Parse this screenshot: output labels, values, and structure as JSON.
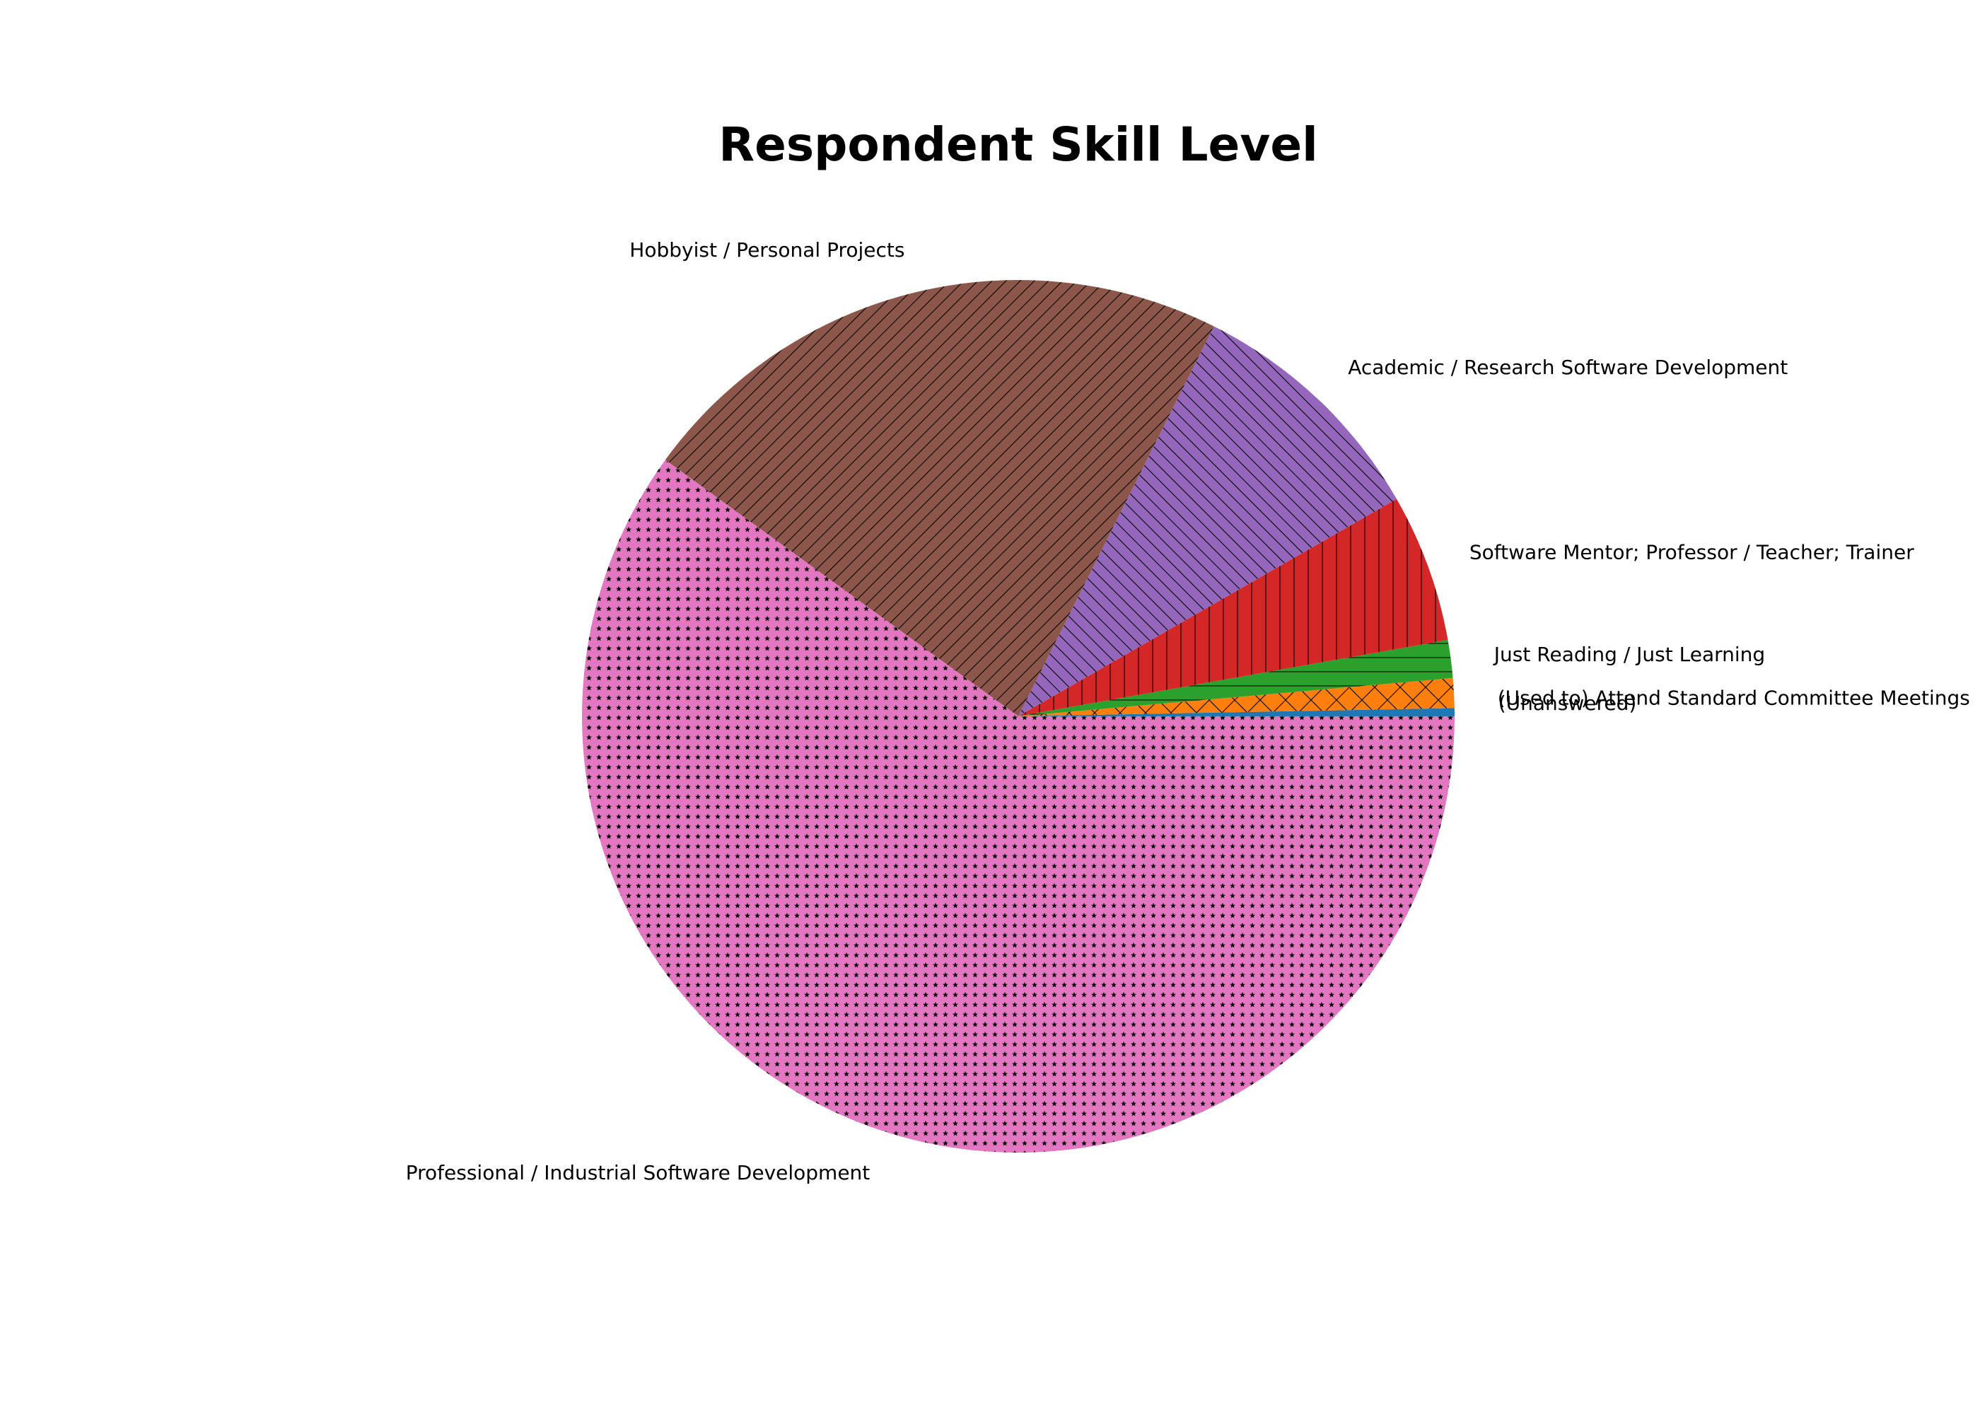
{
  "chart_data": {
    "type": "pie",
    "title": "Respondent Skill Level",
    "start_angle_deg": 0,
    "direction": "counterclockwise",
    "slices": [
      {
        "label": "(Unanswered)",
        "value": 0.3,
        "color": "#1f77b4",
        "hatch": "none"
      },
      {
        "label": "(Used to) Attend Standard Committee Meetings",
        "value": 1.1,
        "color": "#ff7f0e",
        "hatch": "crosshatch"
      },
      {
        "label": "Just Reading / Just Learning",
        "value": 1.4,
        "color": "#2ca02c",
        "hatch": "horizontal"
      },
      {
        "label": "Software Mentor; Professor / Teacher; Trainer",
        "value": 5.5,
        "color": "#d62728",
        "hatch": "vertical"
      },
      {
        "label": "Academic / Research Software Development",
        "value": 9.3,
        "color": "#9467bd",
        "hatch": "backslash"
      },
      {
        "label": "Hobbyist / Personal Projects",
        "value": 22.4,
        "color": "#8c564b",
        "hatch": "slash"
      },
      {
        "label": "Professional / Industrial Software Development",
        "value": 60.0,
        "color": "#e377c2",
        "hatch": "stars"
      }
    ]
  }
}
